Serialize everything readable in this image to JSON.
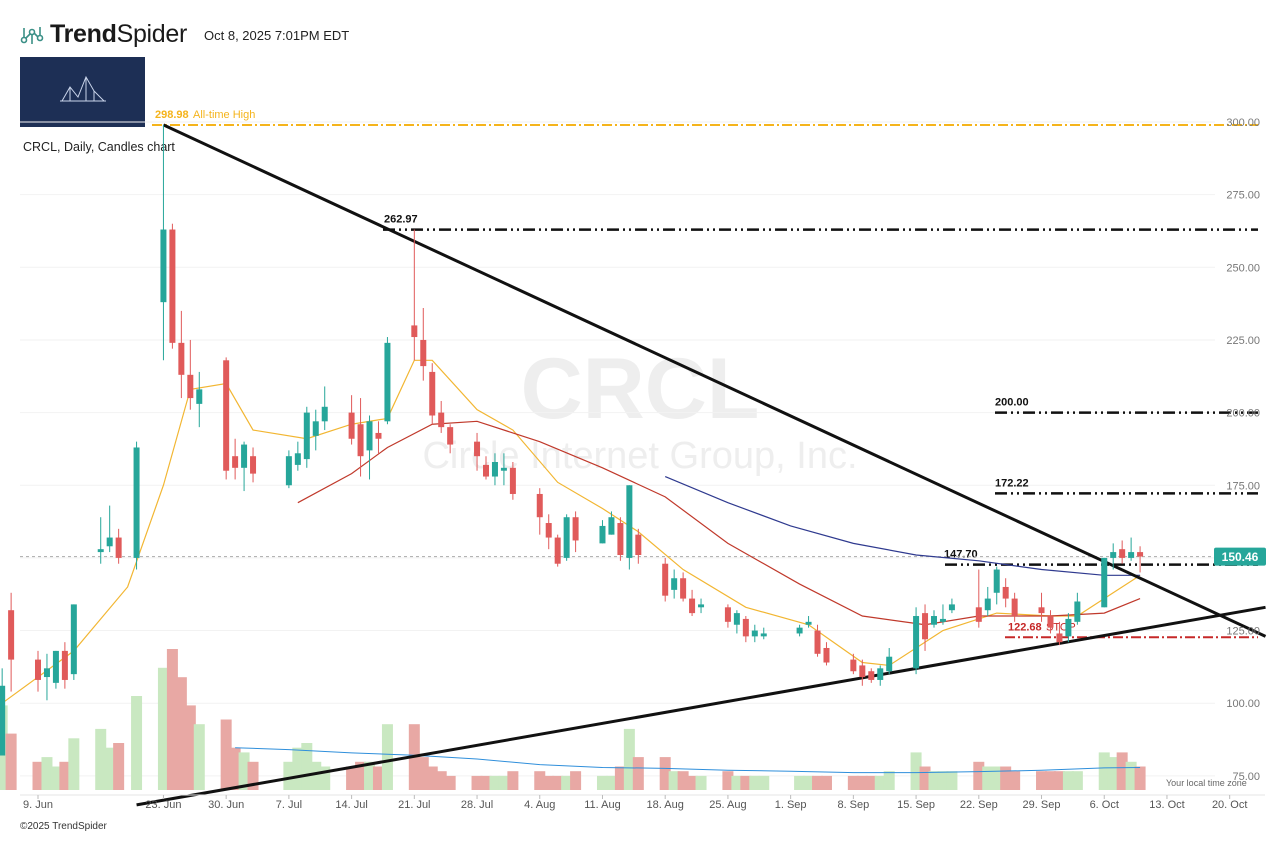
{
  "header": {
    "brand_bold": "Trend",
    "brand_light": "Spider",
    "timestamp": "Oct 8, 2025 7:01PM EDT",
    "copyright": "©2025 TrendSpider",
    "timezone_note": "Your local time zone"
  },
  "colors": {
    "up": "#26a69a",
    "down": "#e05a5a",
    "vol_up": "#c9e8c1",
    "vol_down": "#e8a8a4",
    "ath": "#f5b41c",
    "ema_fast": "#f2b632",
    "ema_mid": "#c0392b",
    "sma_slow": "#2f3a8f",
    "vol_ma": "#2f8fdb",
    "stop": "#c62828",
    "price_tag": "#26a69a",
    "watermark": "#eeeeee",
    "trendline": "#111111"
  },
  "chart_data": {
    "type": "candlestick",
    "title": "CRCL, Daily, Candles chart",
    "watermark_symbol": "CRCL",
    "watermark_name": "Circle Internet Group, Inc.",
    "y_ticks": [
      300,
      275,
      250,
      225,
      200,
      175,
      150,
      125,
      100,
      75
    ],
    "y_tick_labels": [
      "300.00",
      "275.00",
      "250.00",
      "225.00",
      "200.00",
      "175.00",
      "150.00",
      "125.00",
      "100.00",
      "75.00"
    ],
    "x_ticks": [
      {
        "date": "2025-06-09",
        "label": "9. Jun"
      },
      {
        "date": "2025-06-23",
        "label": "23. Jun"
      },
      {
        "date": "2025-06-30",
        "label": "30. Jun"
      },
      {
        "date": "2025-07-07",
        "label": "7. Jul"
      },
      {
        "date": "2025-07-14",
        "label": "14. Jul"
      },
      {
        "date": "2025-07-21",
        "label": "21. Jul"
      },
      {
        "date": "2025-07-28",
        "label": "28. Jul"
      },
      {
        "date": "2025-08-04",
        "label": "4. Aug"
      },
      {
        "date": "2025-08-11",
        "label": "11. Aug"
      },
      {
        "date": "2025-08-18",
        "label": "18. Aug"
      },
      {
        "date": "2025-08-25",
        "label": "25. Aug"
      },
      {
        "date": "2025-09-01",
        "label": "1. Sep"
      },
      {
        "date": "2025-09-08",
        "label": "8. Sep"
      },
      {
        "date": "2025-09-15",
        "label": "15. Sep"
      },
      {
        "date": "2025-09-22",
        "label": "22. Sep"
      },
      {
        "date": "2025-09-29",
        "label": "29. Sep"
      },
      {
        "date": "2025-10-06",
        "label": "6. Oct"
      },
      {
        "date": "2025-10-13",
        "label": "13. Oct"
      },
      {
        "date": "2025-10-20",
        "label": "20. Oct"
      }
    ],
    "last_price": 150.46,
    "last_price_label": "150.46",
    "levels": [
      {
        "value": 298.98,
        "label": "298.98",
        "note": "All-time High",
        "style": "ath"
      },
      {
        "value": 262.97,
        "label": "262.97",
        "note": "",
        "style": "dashdot"
      },
      {
        "value": 200.0,
        "label": "200.00",
        "note": "",
        "style": "dashdot"
      },
      {
        "value": 172.22,
        "label": "172.22",
        "note": "",
        "style": "dashdot"
      },
      {
        "value": 147.7,
        "label": "147.70",
        "note": "",
        "style": "dashdot"
      },
      {
        "value": 122.68,
        "label": "122.68",
        "note": "STOP",
        "style": "stop"
      }
    ],
    "trendlines": [
      {
        "from": [
          "2025-06-23",
          299
        ],
        "to": [
          "2025-10-24",
          123
        ]
      },
      {
        "from": [
          "2025-06-20",
          65
        ],
        "to": [
          "2025-10-24",
          133
        ]
      }
    ],
    "candles": [
      {
        "d": "2025-06-05",
        "o": 82,
        "h": 112,
        "l": 82,
        "c": 106,
        "v": 18
      },
      {
        "d": "2025-06-06",
        "o": 132,
        "h": 138,
        "l": 104,
        "c": 115,
        "v": 12
      },
      {
        "d": "2025-06-09",
        "o": 115,
        "h": 118,
        "l": 104,
        "c": 108,
        "v": 6
      },
      {
        "d": "2025-06-10",
        "o": 109,
        "h": 117,
        "l": 101,
        "c": 112,
        "v": 7
      },
      {
        "d": "2025-06-11",
        "o": 107,
        "h": 118,
        "l": 105,
        "c": 118,
        "v": 5
      },
      {
        "d": "2025-06-12",
        "o": 118,
        "h": 121,
        "l": 105,
        "c": 108,
        "v": 6
      },
      {
        "d": "2025-06-13",
        "o": 110,
        "h": 134,
        "l": 108,
        "c": 134,
        "v": 11
      },
      {
        "d": "2025-06-16",
        "o": 152,
        "h": 164,
        "l": 148,
        "c": 153,
        "v": 13
      },
      {
        "d": "2025-06-17",
        "o": 154,
        "h": 168,
        "l": 152,
        "c": 157,
        "v": 9
      },
      {
        "d": "2025-06-18",
        "o": 157,
        "h": 160,
        "l": 148,
        "c": 150,
        "v": 10
      },
      {
        "d": "2025-06-20",
        "o": 150,
        "h": 190,
        "l": 146,
        "c": 188,
        "v": 20
      },
      {
        "d": "2025-06-23",
        "o": 238,
        "h": 298.98,
        "l": 218,
        "c": 263,
        "v": 26
      },
      {
        "d": "2025-06-24",
        "o": 263,
        "h": 265,
        "l": 222,
        "c": 224,
        "v": 30
      },
      {
        "d": "2025-06-25",
        "o": 224,
        "h": 235,
        "l": 205,
        "c": 213,
        "v": 24
      },
      {
        "d": "2025-06-26",
        "o": 213,
        "h": 225,
        "l": 201,
        "c": 205,
        "v": 18
      },
      {
        "d": "2025-06-27",
        "o": 203,
        "h": 214,
        "l": 195,
        "c": 208,
        "v": 14
      },
      {
        "d": "2025-06-30",
        "o": 218,
        "h": 219,
        "l": 177,
        "c": 180,
        "v": 15
      },
      {
        "d": "2025-07-01",
        "o": 185,
        "h": 191,
        "l": 177,
        "c": 181,
        "v": 9
      },
      {
        "d": "2025-07-02",
        "o": 181,
        "h": 190,
        "l": 173,
        "c": 189,
        "v": 8
      },
      {
        "d": "2025-07-03",
        "o": 185,
        "h": 188,
        "l": 176,
        "c": 179,
        "v": 6
      },
      {
        "d": "2025-07-07",
        "o": 175,
        "h": 187,
        "l": 174,
        "c": 185,
        "v": 6
      },
      {
        "d": "2025-07-08",
        "o": 182,
        "h": 190,
        "l": 180,
        "c": 186,
        "v": 9
      },
      {
        "d": "2025-07-09",
        "o": 184,
        "h": 202,
        "l": 181,
        "c": 200,
        "v": 10
      },
      {
        "d": "2025-07-10",
        "o": 192,
        "h": 201,
        "l": 187,
        "c": 197,
        "v": 6
      },
      {
        "d": "2025-07-11",
        "o": 197,
        "h": 209,
        "l": 194,
        "c": 202,
        "v": 5
      },
      {
        "d": "2025-07-14",
        "o": 200,
        "h": 206,
        "l": 189,
        "c": 191,
        "v": 5
      },
      {
        "d": "2025-07-15",
        "o": 196,
        "h": 205,
        "l": 178,
        "c": 185,
        "v": 6
      },
      {
        "d": "2025-07-16",
        "o": 187,
        "h": 199,
        "l": 177,
        "c": 197,
        "v": 6
      },
      {
        "d": "2025-07-17",
        "o": 193,
        "h": 197,
        "l": 186,
        "c": 191,
        "v": 5
      },
      {
        "d": "2025-07-18",
        "o": 197,
        "h": 226,
        "l": 196,
        "c": 224,
        "v": 14
      },
      {
        "d": "2025-07-21",
        "o": 230,
        "h": 263,
        "l": 218,
        "c": 226,
        "v": 14
      },
      {
        "d": "2025-07-22",
        "o": 225,
        "h": 236,
        "l": 211,
        "c": 216,
        "v": 7
      },
      {
        "d": "2025-07-23",
        "o": 214,
        "h": 217,
        "l": 196,
        "c": 199,
        "v": 5
      },
      {
        "d": "2025-07-24",
        "o": 200,
        "h": 204,
        "l": 193,
        "c": 195,
        "v": 4
      },
      {
        "d": "2025-07-25",
        "o": 195,
        "h": 196,
        "l": 186,
        "c": 189,
        "v": 3
      },
      {
        "d": "2025-07-28",
        "o": 190,
        "h": 193,
        "l": 180,
        "c": 185,
        "v": 3
      },
      {
        "d": "2025-07-29",
        "o": 182,
        "h": 185,
        "l": 177,
        "c": 178,
        "v": 3
      },
      {
        "d": "2025-07-30",
        "o": 178,
        "h": 186,
        "l": 175,
        "c": 183,
        "v": 3
      },
      {
        "d": "2025-07-31",
        "o": 180,
        "h": 186,
        "l": 175,
        "c": 181,
        "v": 3
      },
      {
        "d": "2025-08-01",
        "o": 181,
        "h": 183,
        "l": 170,
        "c": 172,
        "v": 4
      },
      {
        "d": "2025-08-04",
        "o": 172,
        "h": 174,
        "l": 158,
        "c": 164,
        "v": 4
      },
      {
        "d": "2025-08-05",
        "o": 162,
        "h": 165,
        "l": 153,
        "c": 157,
        "v": 3
      },
      {
        "d": "2025-08-06",
        "o": 157,
        "h": 158,
        "l": 147,
        "c": 148,
        "v": 3
      },
      {
        "d": "2025-08-07",
        "o": 150,
        "h": 165,
        "l": 149,
        "c": 164,
        "v": 3
      },
      {
        "d": "2025-08-08",
        "o": 164,
        "h": 166,
        "l": 152,
        "c": 156,
        "v": 4
      },
      {
        "d": "2025-08-11",
        "o": 155,
        "h": 163,
        "l": 155,
        "c": 161,
        "v": 3
      },
      {
        "d": "2025-08-12",
        "o": 158,
        "h": 166,
        "l": 158,
        "c": 164,
        "v": 3
      },
      {
        "d": "2025-08-13",
        "o": 162,
        "h": 164,
        "l": 149,
        "c": 151,
        "v": 5
      },
      {
        "d": "2025-08-14",
        "o": 150,
        "h": 175,
        "l": 146,
        "c": 175,
        "v": 13
      },
      {
        "d": "2025-08-15",
        "o": 158,
        "h": 160,
        "l": 148,
        "c": 151,
        "v": 7
      },
      {
        "d": "2025-08-18",
        "o": 148,
        "h": 150,
        "l": 135,
        "c": 137,
        "v": 7
      },
      {
        "d": "2025-08-19",
        "o": 139,
        "h": 146,
        "l": 136,
        "c": 143,
        "v": 4
      },
      {
        "d": "2025-08-20",
        "o": 143,
        "h": 145,
        "l": 135,
        "c": 136,
        "v": 4
      },
      {
        "d": "2025-08-21",
        "o": 136,
        "h": 139,
        "l": 130,
        "c": 131,
        "v": 3
      },
      {
        "d": "2025-08-22",
        "o": 133,
        "h": 136,
        "l": 131,
        "c": 134,
        "v": 3
      },
      {
        "d": "2025-08-25",
        "o": 133,
        "h": 134,
        "l": 126,
        "c": 128,
        "v": 4
      },
      {
        "d": "2025-08-26",
        "o": 127,
        "h": 132,
        "l": 124,
        "c": 131,
        "v": 3
      },
      {
        "d": "2025-08-27",
        "o": 129,
        "h": 130,
        "l": 121,
        "c": 123,
        "v": 3
      },
      {
        "d": "2025-08-28",
        "o": 123,
        "h": 127,
        "l": 121,
        "c": 125,
        "v": 3
      },
      {
        "d": "2025-08-29",
        "o": 123,
        "h": 126,
        "l": 122,
        "c": 124,
        "v": 3
      },
      {
        "d": "2025-09-02",
        "o": 124,
        "h": 127,
        "l": 123,
        "c": 126,
        "v": 3
      },
      {
        "d": "2025-09-03",
        "o": 127,
        "h": 130,
        "l": 126,
        "c": 128,
        "v": 3
      },
      {
        "d": "2025-09-04",
        "o": 125,
        "h": 127,
        "l": 116,
        "c": 117,
        "v": 3
      },
      {
        "d": "2025-09-05",
        "o": 119,
        "h": 121,
        "l": 113,
        "c": 114,
        "v": 3
      },
      {
        "d": "2025-09-08",
        "o": 115,
        "h": 117,
        "l": 110,
        "c": 111,
        "v": 3
      },
      {
        "d": "2025-09-09",
        "o": 113,
        "h": 115,
        "l": 106,
        "c": 109,
        "v": 3
      },
      {
        "d": "2025-09-10",
        "o": 111,
        "h": 112,
        "l": 107,
        "c": 108,
        "v": 3
      },
      {
        "d": "2025-09-11",
        "o": 108,
        "h": 113,
        "l": 106,
        "c": 112,
        "v": 3
      },
      {
        "d": "2025-09-12",
        "o": 111,
        "h": 119,
        "l": 110,
        "c": 116,
        "v": 4
      },
      {
        "d": "2025-09-15",
        "o": 112,
        "h": 133,
        "l": 110,
        "c": 130,
        "v": 8
      },
      {
        "d": "2025-09-16",
        "o": 131,
        "h": 134,
        "l": 118,
        "c": 122,
        "v": 5
      },
      {
        "d": "2025-09-17",
        "o": 127,
        "h": 132,
        "l": 126,
        "c": 130,
        "v": 4
      },
      {
        "d": "2025-09-18",
        "o": 128,
        "h": 134,
        "l": 127,
        "c": 129,
        "v": 4
      },
      {
        "d": "2025-09-19",
        "o": 132,
        "h": 136,
        "l": 131,
        "c": 134,
        "v": 4
      },
      {
        "d": "2025-09-22",
        "o": 133,
        "h": 146,
        "l": 126,
        "c": 128,
        "v": 6
      },
      {
        "d": "2025-09-23",
        "o": 132,
        "h": 140,
        "l": 130,
        "c": 136,
        "v": 5
      },
      {
        "d": "2025-09-24",
        "o": 138,
        "h": 147,
        "l": 134,
        "c": 146,
        "v": 5
      },
      {
        "d": "2025-09-25",
        "o": 140,
        "h": 143,
        "l": 133,
        "c": 136,
        "v": 5
      },
      {
        "d": "2025-09-26",
        "o": 136,
        "h": 138,
        "l": 128,
        "c": 130,
        "v": 4
      },
      {
        "d": "2025-09-29",
        "o": 133,
        "h": 138,
        "l": 128,
        "c": 131,
        "v": 4
      },
      {
        "d": "2025-09-30",
        "o": 130,
        "h": 132,
        "l": 124,
        "c": 126,
        "v": 4
      },
      {
        "d": "2025-10-01",
        "o": 124,
        "h": 128,
        "l": 120,
        "c": 121,
        "v": 4
      },
      {
        "d": "2025-10-02",
        "o": 123,
        "h": 131,
        "l": 121,
        "c": 129,
        "v": 4
      },
      {
        "d": "2025-10-03",
        "o": 128,
        "h": 138,
        "l": 127,
        "c": 135,
        "v": 4
      },
      {
        "d": "2025-10-06",
        "o": 133,
        "h": 150,
        "l": 133,
        "c": 150,
        "v": 8
      },
      {
        "d": "2025-10-07",
        "o": 150,
        "h": 155,
        "l": 146,
        "c": 152,
        "v": 7
      },
      {
        "d": "2025-10-08",
        "o": 153,
        "h": 156,
        "l": 148,
        "c": 150,
        "v": 8
      },
      {
        "d": "2025-10-09",
        "o": 150,
        "h": 157,
        "l": 149,
        "c": 152,
        "v": 6
      },
      {
        "d": "2025-10-10",
        "o": 152,
        "h": 154,
        "l": 145,
        "c": 150.46,
        "v": 5
      }
    ],
    "ema_fast": [
      [
        "2025-06-05",
        100
      ],
      [
        "2025-06-13",
        118
      ],
      [
        "2025-06-19",
        140
      ],
      [
        "2025-06-23",
        175
      ],
      [
        "2025-06-26",
        208
      ],
      [
        "2025-06-30",
        210
      ],
      [
        "2025-07-03",
        194
      ],
      [
        "2025-07-09",
        191
      ],
      [
        "2025-07-14",
        196
      ],
      [
        "2025-07-18",
        198
      ],
      [
        "2025-07-21",
        218
      ],
      [
        "2025-07-23",
        218
      ],
      [
        "2025-07-28",
        201
      ],
      [
        "2025-08-01",
        194
      ],
      [
        "2025-08-06",
        176
      ],
      [
        "2025-08-11",
        167
      ],
      [
        "2025-08-15",
        159
      ],
      [
        "2025-08-20",
        146
      ],
      [
        "2025-08-27",
        133
      ],
      [
        "2025-09-03",
        127
      ],
      [
        "2025-09-09",
        114
      ],
      [
        "2025-09-12",
        113
      ],
      [
        "2025-09-18",
        125
      ],
      [
        "2025-09-24",
        131
      ],
      [
        "2025-09-30",
        130
      ],
      [
        "2025-10-03",
        130
      ],
      [
        "2025-10-07",
        138
      ],
      [
        "2025-10-10",
        144
      ]
    ],
    "ema_mid": [
      [
        "2025-07-08",
        169
      ],
      [
        "2025-07-14",
        179
      ],
      [
        "2025-07-18",
        188
      ],
      [
        "2025-07-23",
        196
      ],
      [
        "2025-07-28",
        197
      ],
      [
        "2025-08-04",
        190
      ],
      [
        "2025-08-11",
        181
      ],
      [
        "2025-08-18",
        171
      ],
      [
        "2025-08-25",
        155
      ],
      [
        "2025-09-02",
        141
      ],
      [
        "2025-09-09",
        130
      ],
      [
        "2025-09-16",
        127
      ],
      [
        "2025-09-22",
        130
      ],
      [
        "2025-09-30",
        130
      ],
      [
        "2025-10-06",
        131
      ],
      [
        "2025-10-10",
        136
      ]
    ],
    "sma_slow": [
      [
        "2025-08-18",
        178
      ],
      [
        "2025-08-25",
        169
      ],
      [
        "2025-09-01",
        161
      ],
      [
        "2025-09-08",
        155
      ],
      [
        "2025-09-15",
        151
      ],
      [
        "2025-09-22",
        149
      ],
      [
        "2025-09-29",
        146
      ],
      [
        "2025-10-06",
        144
      ],
      [
        "2025-10-10",
        144
      ]
    ],
    "volume_ma": [
      [
        "2025-07-01",
        9
      ],
      [
        "2025-07-07",
        8.6
      ],
      [
        "2025-07-14",
        7.9
      ],
      [
        "2025-07-21",
        7.4
      ],
      [
        "2025-07-28",
        6.6
      ],
      [
        "2025-08-04",
        5.4
      ],
      [
        "2025-08-11",
        4.8
      ],
      [
        "2025-08-18",
        4.6
      ],
      [
        "2025-08-25",
        4.2
      ],
      [
        "2025-09-01",
        4.0
      ],
      [
        "2025-09-08",
        3.7
      ],
      [
        "2025-09-15",
        3.7
      ],
      [
        "2025-09-22",
        3.9
      ],
      [
        "2025-09-29",
        4.2
      ],
      [
        "2025-10-06",
        4.7
      ],
      [
        "2025-10-10",
        4.8
      ]
    ]
  }
}
